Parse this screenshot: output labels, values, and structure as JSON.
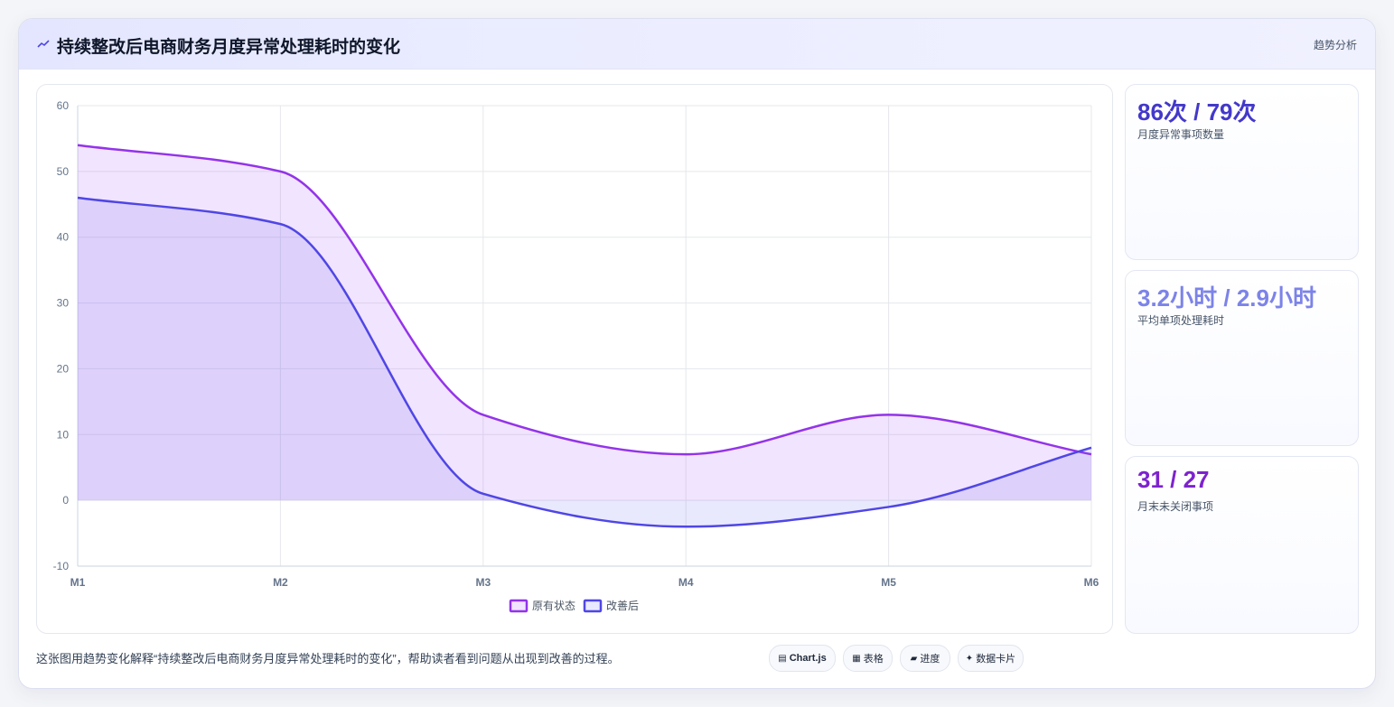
{
  "header": {
    "title": "持续整改后电商财务月度异常处理耗时的变化",
    "tag": "趋势分析",
    "icon": "trend-icon"
  },
  "chart_data": {
    "type": "area",
    "categories": [
      "M1",
      "M2",
      "M3",
      "M4",
      "M5",
      "M6"
    ],
    "series": [
      {
        "name": "原有状态",
        "values": [
          54,
          50,
          13,
          7,
          13,
          7
        ],
        "color": "#9333ea"
      },
      {
        "name": "改善后",
        "values": [
          46,
          42,
          1,
          -4,
          -1,
          8
        ],
        "color": "#4f46e5"
      }
    ],
    "ylim": [
      -10,
      60
    ],
    "yticks": [
      60,
      50,
      40,
      30,
      20,
      10,
      0,
      -10
    ],
    "grid": true,
    "legend": "bottom-center"
  },
  "stats": [
    {
      "value": "86次 / 79次",
      "label": "月度异常事项数量",
      "color": "#4338ca"
    },
    {
      "value": "3.2小时 / 2.9小时",
      "label": "平均单项处理耗时",
      "color": "#7c83e8"
    },
    {
      "value": "31 / 27",
      "label": "月末未关闭事项",
      "color": "#7e22ce"
    }
  ],
  "caption": "这张图用趋势变化解释“持续整改后电商财务月度异常处理耗时的变化”，帮助读者看到问题从出现到改善的过程。",
  "chips": [
    {
      "icon": "▤",
      "label": "Chart.js"
    },
    {
      "icon": "▦",
      "label": "表格"
    },
    {
      "icon": "▰",
      "label": "进度"
    },
    {
      "icon": "✦",
      "label": "数据卡片"
    }
  ]
}
